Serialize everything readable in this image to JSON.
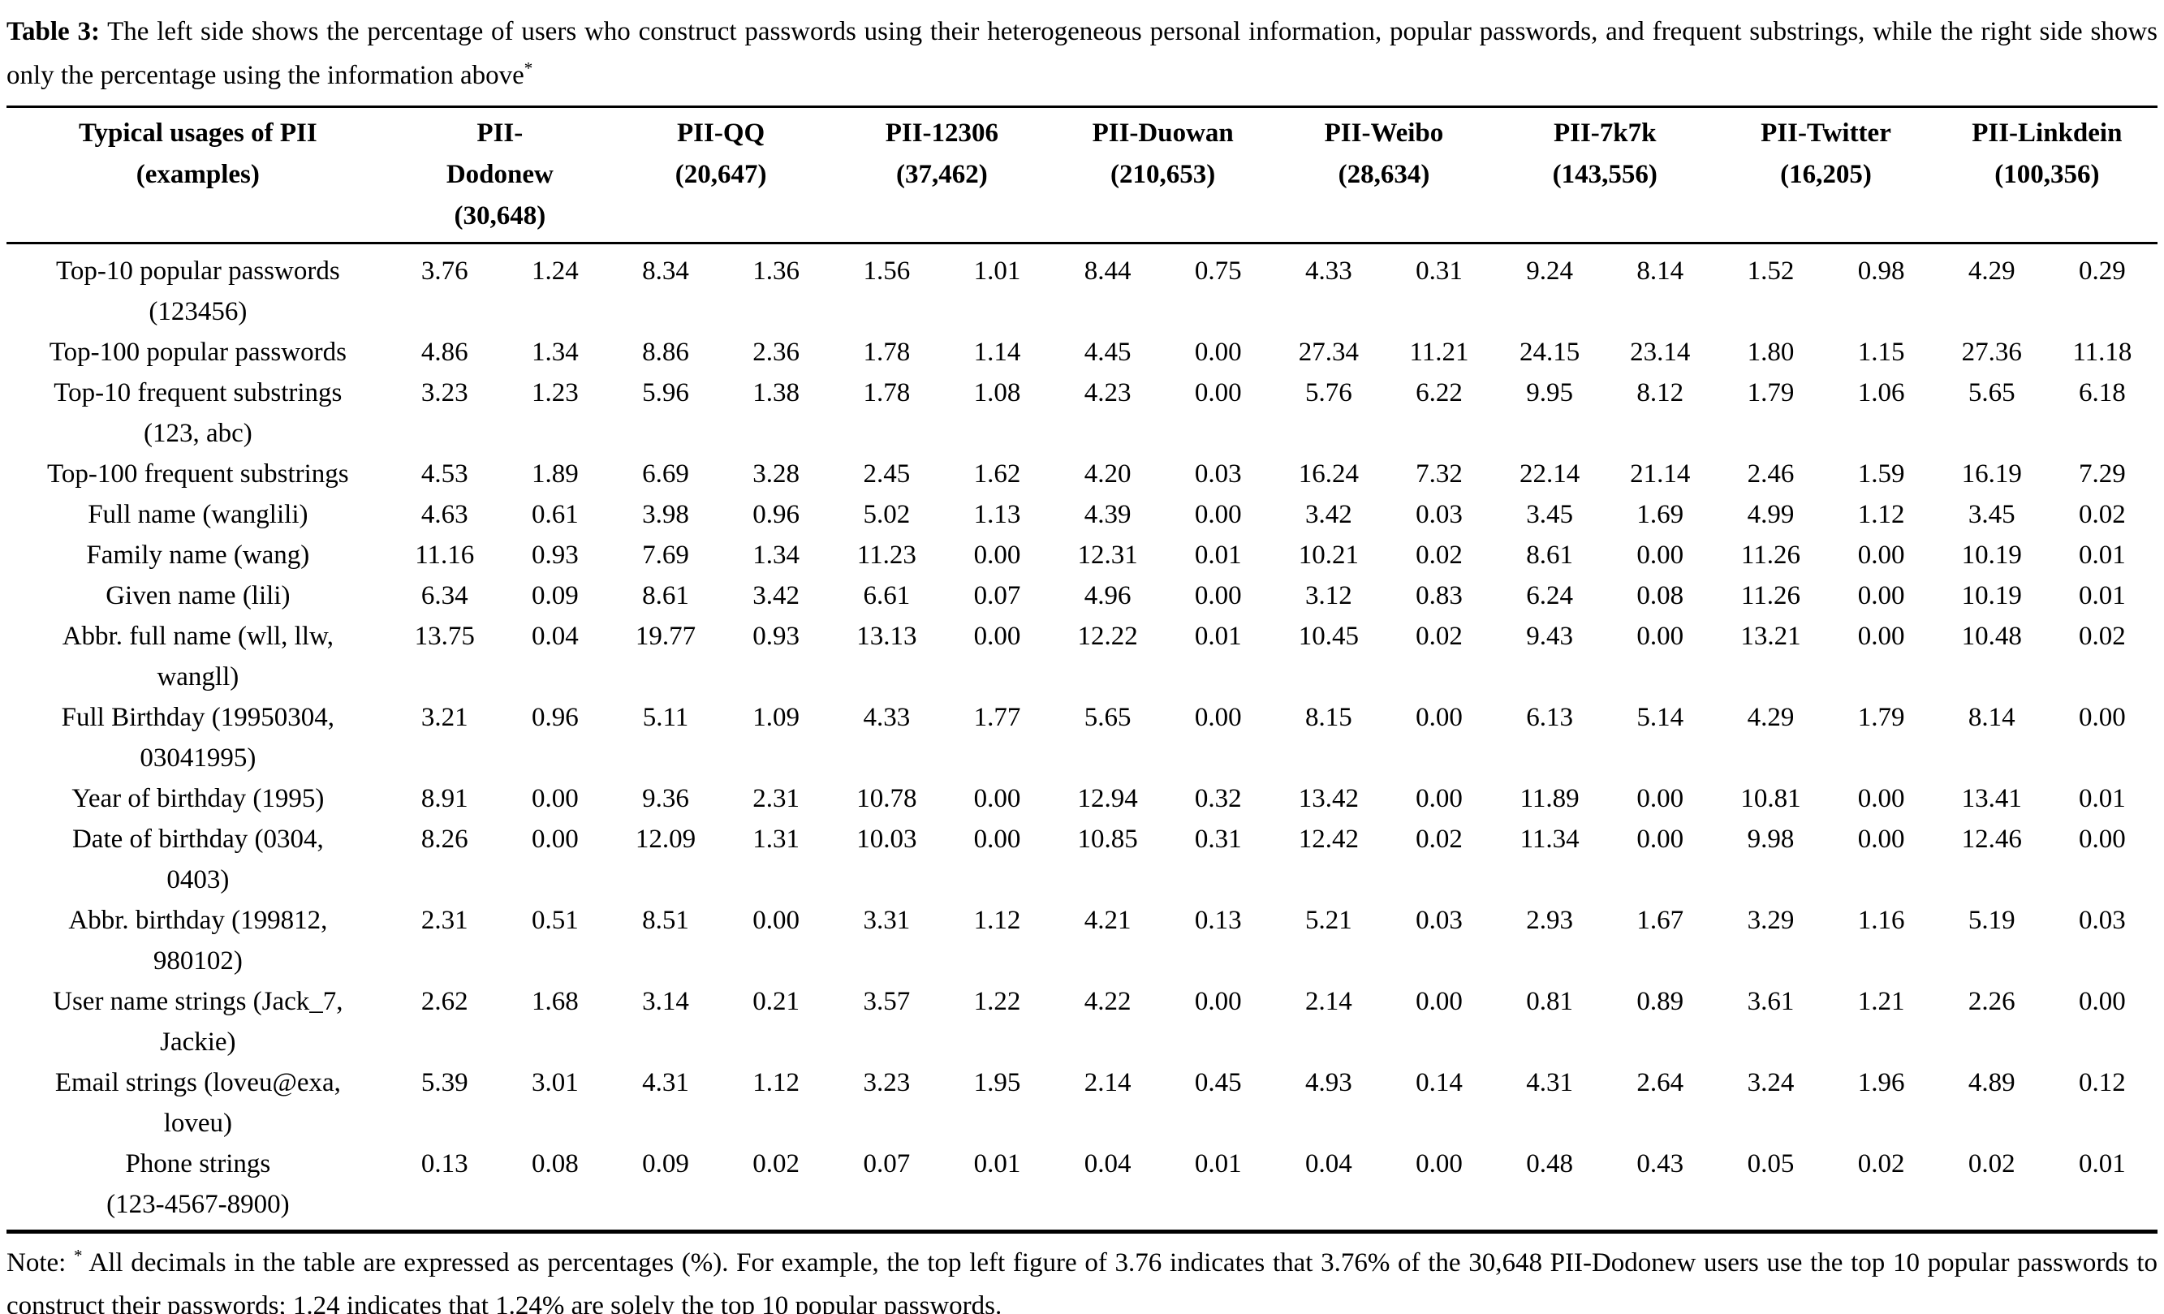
{
  "caption": {
    "label": "Table 3:",
    "text": "The left side shows the percentage of users who construct passwords using their heterogeneous personal information, popular passwords, and frequent substrings, while the right side shows only the percentage using the information above",
    "marker": "*"
  },
  "table": {
    "row_header_lines": [
      "Typical usages of PII",
      "(examples)"
    ],
    "columns": [
      {
        "id": "dodonew",
        "name": "PII-Dodonew",
        "count": "(30,648)",
        "lines": [
          "PII-",
          "Dodonew",
          "(30,648)"
        ]
      },
      {
        "id": "qq",
        "name": "PII-QQ",
        "count": "(20,647)",
        "lines": [
          "PII-QQ",
          "(20,647)"
        ]
      },
      {
        "id": "12306",
        "name": "PII-12306",
        "count": "(37,462)",
        "lines": [
          "PII-12306",
          "(37,462)"
        ]
      },
      {
        "id": "duowan",
        "name": "PII-Duowan",
        "count": "(210,653)",
        "lines": [
          "PII-Duowan",
          "(210,653)"
        ]
      },
      {
        "id": "weibo",
        "name": "PII-Weibo",
        "count": "(28,634)",
        "lines": [
          "PII-Weibo",
          "(28,634)"
        ]
      },
      {
        "id": "7k7k",
        "name": "PII-7k7k",
        "count": "(143,556)",
        "lines": [
          "PII-7k7k",
          "(143,556)"
        ]
      },
      {
        "id": "twitter",
        "name": "PII-Twitter",
        "count": "(16,205)",
        "lines": [
          "PII-Twitter",
          "(16,205)"
        ]
      },
      {
        "id": "linkdein",
        "name": "PII-Linkdein",
        "count": "(100,356)",
        "lines": [
          "PII-Linkdein",
          "(100,356)"
        ]
      }
    ],
    "rows": [
      {
        "label_lines": [
          "Top-10 popular passwords",
          "(123456)"
        ],
        "values": [
          "3.76",
          "1.24",
          "8.34",
          "1.36",
          "1.56",
          "1.01",
          "8.44",
          "0.75",
          "4.33",
          "0.31",
          "9.24",
          "8.14",
          "1.52",
          "0.98",
          "4.29",
          "0.29"
        ]
      },
      {
        "label_lines": [
          "Top-100 popular passwords"
        ],
        "values": [
          "4.86",
          "1.34",
          "8.86",
          "2.36",
          "1.78",
          "1.14",
          "4.45",
          "0.00",
          "27.34",
          "11.21",
          "24.15",
          "23.14",
          "1.80",
          "1.15",
          "27.36",
          "11.18"
        ]
      },
      {
        "label_lines": [
          "Top-10 frequent substrings",
          "(123, abc)"
        ],
        "values": [
          "3.23",
          "1.23",
          "5.96",
          "1.38",
          "1.78",
          "1.08",
          "4.23",
          "0.00",
          "5.76",
          "6.22",
          "9.95",
          "8.12",
          "1.79",
          "1.06",
          "5.65",
          "6.18"
        ]
      },
      {
        "label_lines": [
          "Top-100 frequent substrings"
        ],
        "values": [
          "4.53",
          "1.89",
          "6.69",
          "3.28",
          "2.45",
          "1.62",
          "4.20",
          "0.03",
          "16.24",
          "7.32",
          "22.14",
          "21.14",
          "2.46",
          "1.59",
          "16.19",
          "7.29"
        ]
      },
      {
        "label_lines": [
          "Full name (wanglili)"
        ],
        "values": [
          "4.63",
          "0.61",
          "3.98",
          "0.96",
          "5.02",
          "1.13",
          "4.39",
          "0.00",
          "3.42",
          "0.03",
          "3.45",
          "1.69",
          "4.99",
          "1.12",
          "3.45",
          "0.02"
        ]
      },
      {
        "label_lines": [
          "Family name (wang)"
        ],
        "values": [
          "11.16",
          "0.93",
          "7.69",
          "1.34",
          "11.23",
          "0.00",
          "12.31",
          "0.01",
          "10.21",
          "0.02",
          "8.61",
          "0.00",
          "11.26",
          "0.00",
          "10.19",
          "0.01"
        ]
      },
      {
        "label_lines": [
          "Given name (lili)"
        ],
        "values": [
          "6.34",
          "0.09",
          "8.61",
          "3.42",
          "6.61",
          "0.07",
          "4.96",
          "0.00",
          "3.12",
          "0.83",
          "6.24",
          "0.08",
          "11.26",
          "0.00",
          "10.19",
          "0.01"
        ]
      },
      {
        "label_lines": [
          "Abbr. full name (wll, llw,",
          "wangll)"
        ],
        "values": [
          "13.75",
          "0.04",
          "19.77",
          "0.93",
          "13.13",
          "0.00",
          "12.22",
          "0.01",
          "10.45",
          "0.02",
          "9.43",
          "0.00",
          "13.21",
          "0.00",
          "10.48",
          "0.02"
        ]
      },
      {
        "label_lines": [
          "Full Birthday (19950304,",
          "03041995)"
        ],
        "values": [
          "3.21",
          "0.96",
          "5.11",
          "1.09",
          "4.33",
          "1.77",
          "5.65",
          "0.00",
          "8.15",
          "0.00",
          "6.13",
          "5.14",
          "4.29",
          "1.79",
          "8.14",
          "0.00"
        ]
      },
      {
        "label_lines": [
          "Year of birthday (1995)"
        ],
        "values": [
          "8.91",
          "0.00",
          "9.36",
          "2.31",
          "10.78",
          "0.00",
          "12.94",
          "0.32",
          "13.42",
          "0.00",
          "11.89",
          "0.00",
          "10.81",
          "0.00",
          "13.41",
          "0.01"
        ]
      },
      {
        "label_lines": [
          "Date of birthday (0304,",
          "0403)"
        ],
        "values": [
          "8.26",
          "0.00",
          "12.09",
          "1.31",
          "10.03",
          "0.00",
          "10.85",
          "0.31",
          "12.42",
          "0.02",
          "11.34",
          "0.00",
          "9.98",
          "0.00",
          "12.46",
          "0.00"
        ]
      },
      {
        "label_lines": [
          "Abbr. birthday (199812,",
          "980102)"
        ],
        "values": [
          "2.31",
          "0.51",
          "8.51",
          "0.00",
          "3.31",
          "1.12",
          "4.21",
          "0.13",
          "5.21",
          "0.03",
          "2.93",
          "1.67",
          "3.29",
          "1.16",
          "5.19",
          "0.03"
        ]
      },
      {
        "label_lines": [
          "User name strings (Jack_7,",
          "Jackie)"
        ],
        "values": [
          "2.62",
          "1.68",
          "3.14",
          "0.21",
          "3.57",
          "1.22",
          "4.22",
          "0.00",
          "2.14",
          "0.00",
          "0.81",
          "0.89",
          "3.61",
          "1.21",
          "2.26",
          "0.00"
        ]
      },
      {
        "label_lines": [
          "Email strings (loveu@exa,",
          "loveu)"
        ],
        "values": [
          "5.39",
          "3.01",
          "4.31",
          "1.12",
          "3.23",
          "1.95",
          "2.14",
          "0.45",
          "4.93",
          "0.14",
          "4.31",
          "2.64",
          "3.24",
          "1.96",
          "4.89",
          "0.12"
        ]
      },
      {
        "label_lines": [
          "Phone strings",
          "(123-4567-8900)"
        ],
        "values": [
          "0.13",
          "0.08",
          "0.09",
          "0.02",
          "0.07",
          "0.01",
          "0.04",
          "0.01",
          "0.04",
          "0.00",
          "0.48",
          "0.43",
          "0.05",
          "0.02",
          "0.02",
          "0.01"
        ]
      }
    ]
  },
  "note": {
    "prefix": "Note:",
    "marker": "*",
    "text": "All decimals in the table are expressed as percentages (%). For example, the top left figure of 3.76 indicates that 3.76% of the 30,648 PII-Dodonew users use the top 10 popular passwords to construct their passwords; 1.24 indicates that 1.24% are solely the top 10 popular passwords."
  }
}
